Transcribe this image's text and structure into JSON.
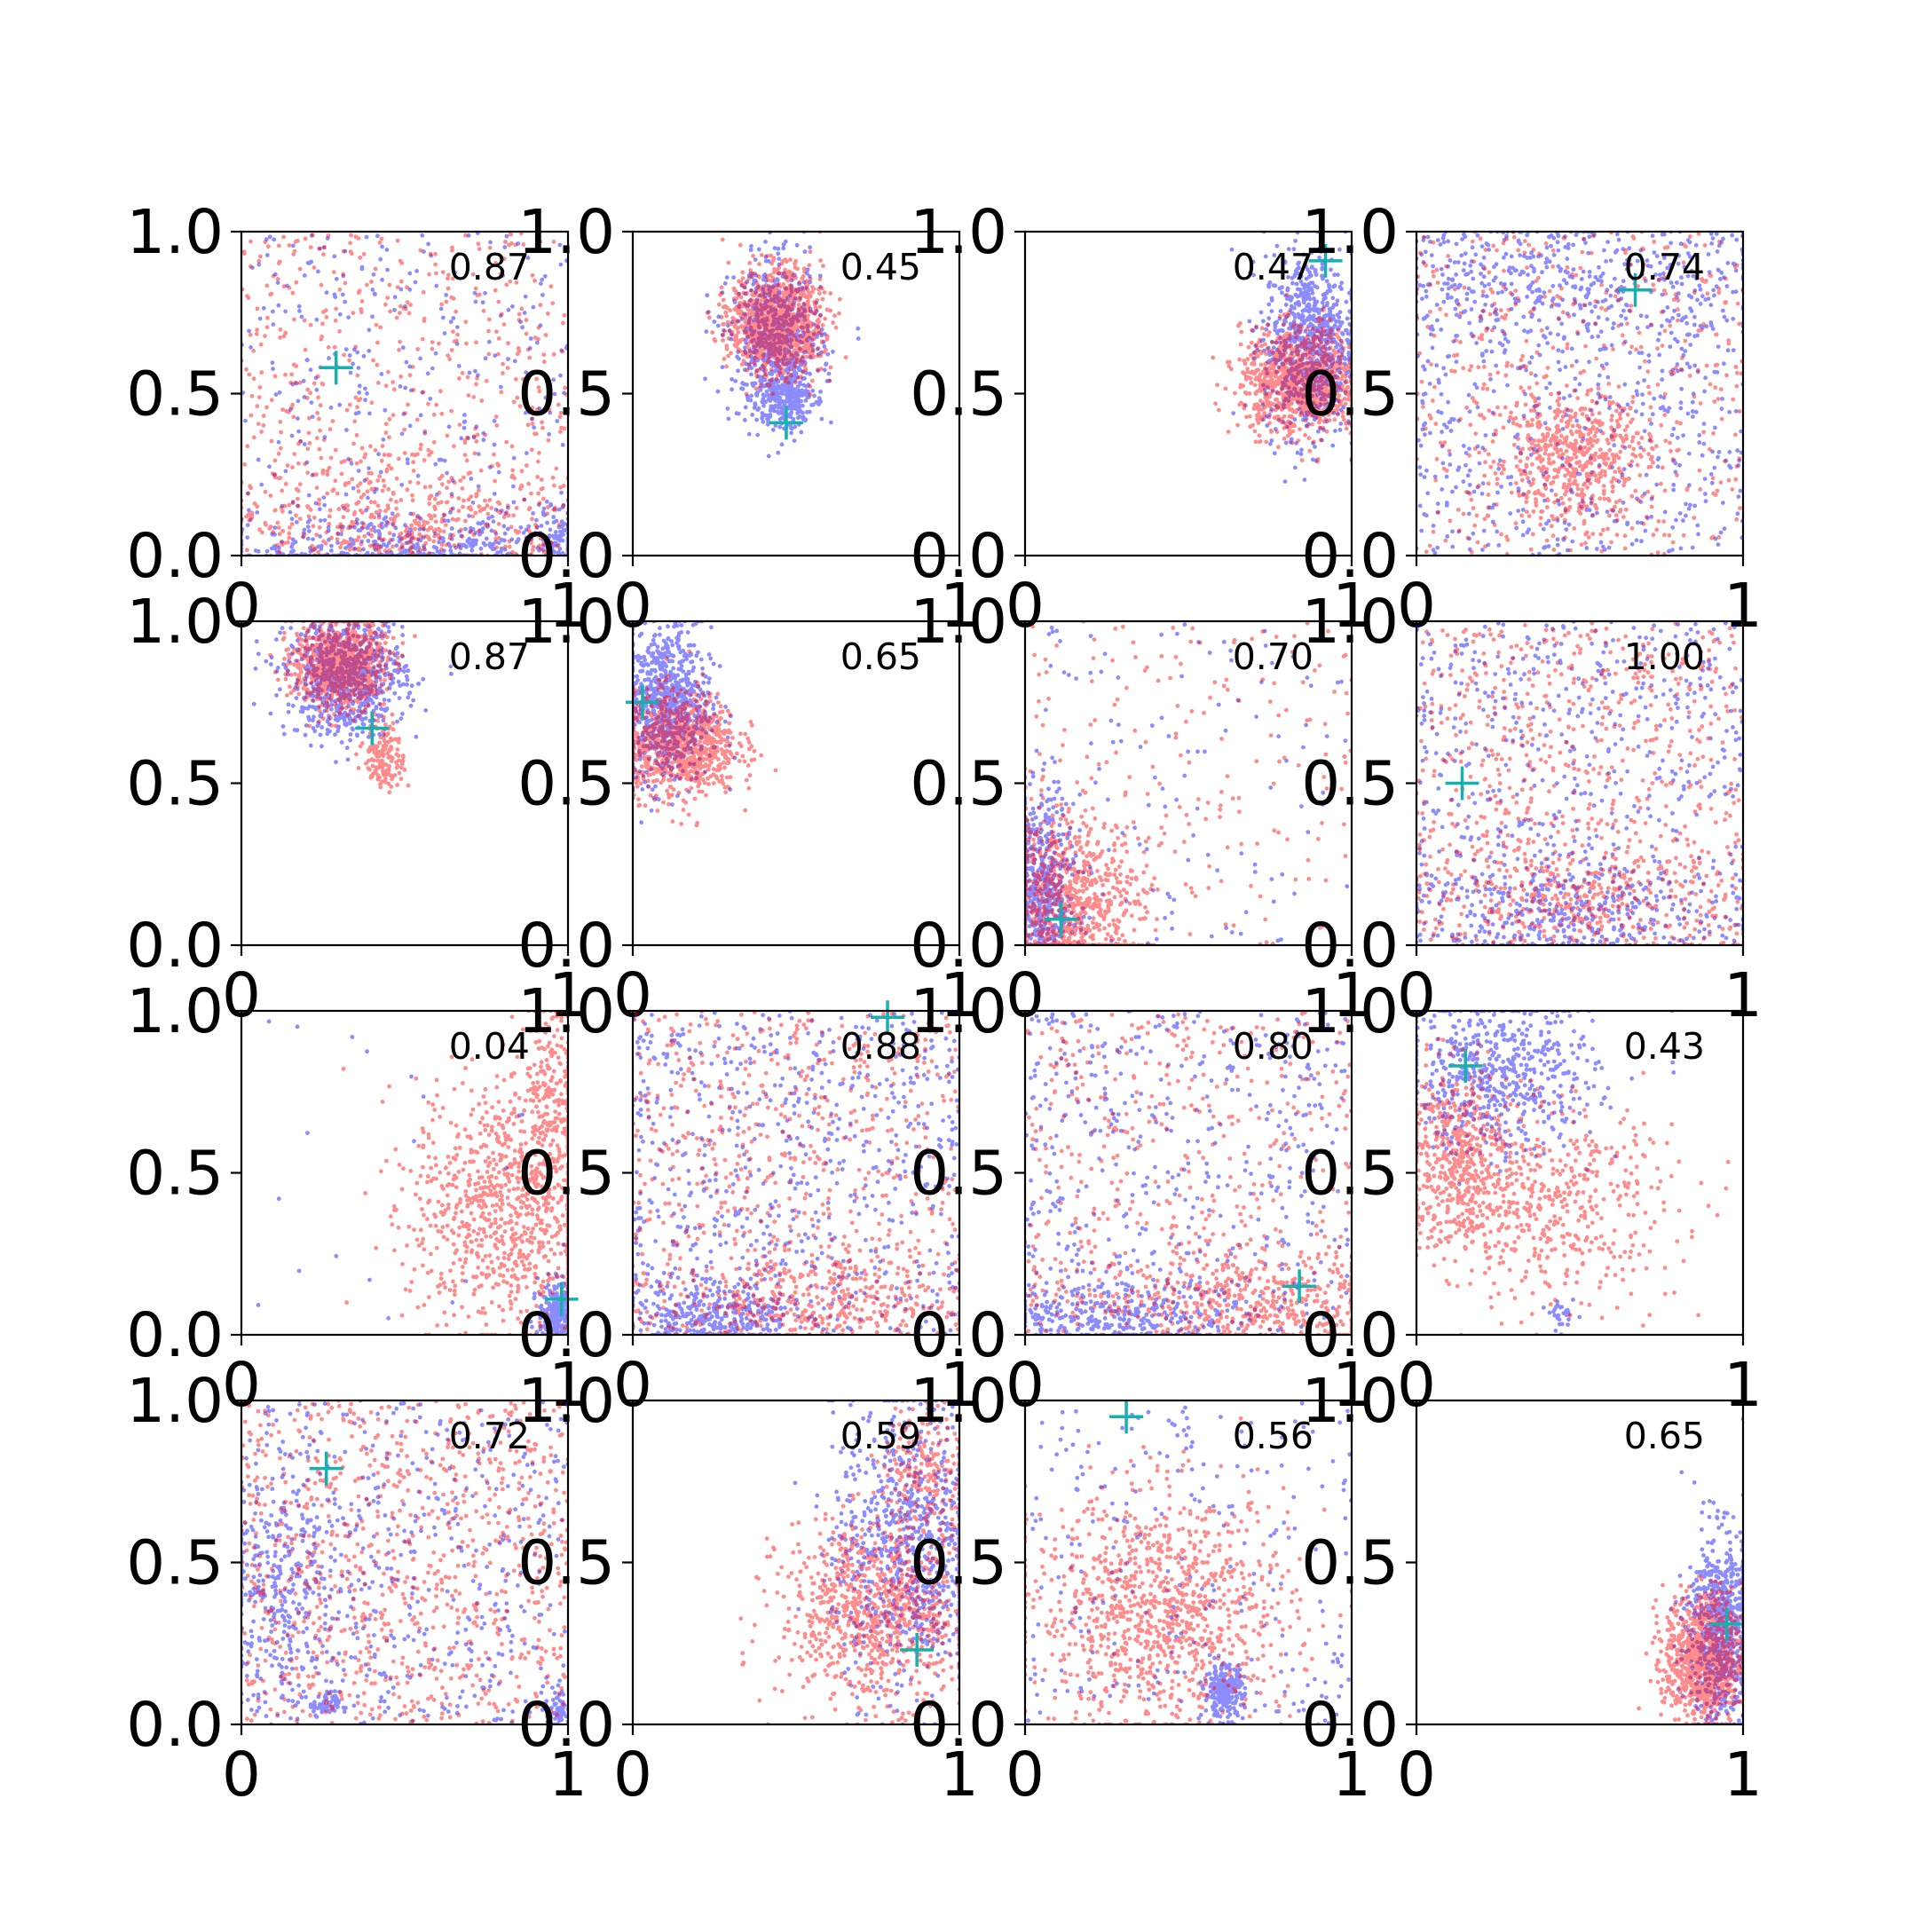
{
  "chart_data": {
    "type": "scatter",
    "rows": 4,
    "cols": 4,
    "xlim": [
      0,
      1
    ],
    "ylim": [
      0,
      1
    ],
    "x_ticks": [
      0,
      1
    ],
    "x_tick_labels": [
      "0",
      "1"
    ],
    "y_ticks": [
      0,
      0.5,
      1
    ],
    "y_tick_labels": [
      "0.0",
      "0.5",
      "1.0"
    ],
    "grid": false,
    "legend": "none",
    "colors": {
      "series_a": "#0000ff",
      "series_b": "#ff0000",
      "marker": "#17b0b0",
      "axes": "#000000"
    },
    "panels": [
      {
        "score": "0.87",
        "marker": [
          0.29,
          0.58
        ],
        "blue": [
          {
            "c": [
              0.5,
              0.5
            ],
            "s": [
              0.3,
              0.3
            ],
            "n": 320,
            "u": true
          },
          {
            "c": [
              0.5,
              0.03
            ],
            "s": [
              0.28,
              0.05
            ],
            "n": 380
          },
          {
            "c": [
              0.97,
              0.05
            ],
            "s": [
              0.03,
              0.05
            ],
            "n": 80
          }
        ],
        "red": [
          {
            "c": [
              0.5,
              0.5
            ],
            "s": [
              0.3,
              0.3
            ],
            "n": 600,
            "u": true
          },
          {
            "c": [
              0.5,
              0.1
            ],
            "s": [
              0.25,
              0.08
            ],
            "n": 300
          }
        ]
      },
      {
        "score": "0.45",
        "marker": [
          0.47,
          0.41
        ],
        "blue": [
          {
            "c": [
              0.44,
              0.66
            ],
            "s": [
              0.07,
              0.12
            ],
            "n": 700
          },
          {
            "c": [
              0.47,
              0.48
            ],
            "s": [
              0.04,
              0.05
            ],
            "n": 200
          }
        ],
        "red": [
          {
            "c": [
              0.44,
              0.72
            ],
            "s": [
              0.07,
              0.08
            ],
            "n": 1100
          }
        ]
      },
      {
        "score": "0.47",
        "marker": [
          0.92,
          0.91
        ],
        "blue": [
          {
            "c": [
              0.87,
              0.65
            ],
            "s": [
              0.07,
              0.14
            ],
            "n": 800
          }
        ],
        "red": [
          {
            "c": [
              0.84,
              0.54
            ],
            "s": [
              0.09,
              0.08
            ],
            "n": 1000
          }
        ]
      },
      {
        "score": "0.74",
        "marker": [
          0.67,
          0.82
        ],
        "blue": [
          {
            "c": [
              0.5,
              0.5
            ],
            "s": [
              0.3,
              0.3
            ],
            "n": 650,
            "u": true
          },
          {
            "c": [
              0.5,
              0.85
            ],
            "s": [
              0.3,
              0.1
            ],
            "n": 300
          }
        ],
        "red": [
          {
            "c": [
              0.47,
              0.3
            ],
            "s": [
              0.12,
              0.1
            ],
            "n": 500
          },
          {
            "c": [
              0.5,
              0.3
            ],
            "s": [
              0.3,
              0.2
            ],
            "n": 500,
            "u": true
          }
        ]
      },
      {
        "score": "0.87",
        "marker": [
          0.4,
          0.67
        ],
        "blue": [
          {
            "c": [
              0.32,
              0.83
            ],
            "s": [
              0.09,
              0.09
            ],
            "n": 800
          }
        ],
        "red": [
          {
            "c": [
              0.3,
              0.87
            ],
            "s": [
              0.07,
              0.07
            ],
            "n": 900
          },
          {
            "c": [
              0.44,
              0.58
            ],
            "s": [
              0.03,
              0.05
            ],
            "n": 150
          }
        ]
      },
      {
        "score": "0.65",
        "marker": [
          0.03,
          0.75
        ],
        "blue": [
          {
            "c": [
              0.1,
              0.74
            ],
            "s": [
              0.07,
              0.12
            ],
            "n": 800
          }
        ],
        "red": [
          {
            "c": [
              0.14,
              0.62
            ],
            "s": [
              0.09,
              0.08
            ],
            "n": 900
          }
        ]
      },
      {
        "score": "0.70",
        "marker": [
          0.11,
          0.08
        ],
        "blue": [
          {
            "c": [
              0.05,
              0.15
            ],
            "s": [
              0.05,
              0.15
            ],
            "n": 600
          },
          {
            "c": [
              0.5,
              0.5
            ],
            "s": [
              0.3,
              0.3
            ],
            "n": 120,
            "u": true
          }
        ],
        "red": [
          {
            "c": [
              0.12,
              0.12
            ],
            "s": [
              0.12,
              0.14
            ],
            "n": 900
          },
          {
            "c": [
              0.5,
              0.4
            ],
            "s": [
              0.3,
              0.3
            ],
            "n": 200,
            "u": true
          }
        ]
      },
      {
        "score": "1.00",
        "marker": [
          0.14,
          0.5
        ],
        "blue": [
          {
            "c": [
              0.5,
              0.5
            ],
            "s": [
              0.3,
              0.3
            ],
            "n": 600,
            "u": true
          },
          {
            "c": [
              0.5,
              0.1
            ],
            "s": [
              0.25,
              0.07
            ],
            "n": 300
          }
        ],
        "red": [
          {
            "c": [
              0.5,
              0.5
            ],
            "s": [
              0.3,
              0.3
            ],
            "n": 700,
            "u": true
          },
          {
            "c": [
              0.5,
              0.15
            ],
            "s": [
              0.25,
              0.1
            ],
            "n": 300
          }
        ]
      },
      {
        "score": "0.04",
        "marker": [
          0.98,
          0.11
        ],
        "blue": [
          {
            "c": [
              0.97,
              0.06
            ],
            "s": [
              0.03,
              0.05
            ],
            "n": 300
          },
          {
            "c": [
              0.5,
              0.5
            ],
            "s": [
              0.3,
              0.3
            ],
            "n": 20,
            "u": true
          }
        ],
        "red": [
          {
            "c": [
              0.82,
              0.4
            ],
            "s": [
              0.15,
              0.2
            ],
            "n": 900
          },
          {
            "c": [
              0.95,
              0.75
            ],
            "s": [
              0.05,
              0.15
            ],
            "n": 200
          }
        ]
      },
      {
        "score": "0.88",
        "marker": [
          0.78,
          0.98
        ],
        "blue": [
          {
            "c": [
              0.5,
              0.5
            ],
            "s": [
              0.3,
              0.3
            ],
            "n": 700,
            "u": true
          },
          {
            "c": [
              0.25,
              0.06
            ],
            "s": [
              0.12,
              0.05
            ],
            "n": 300
          }
        ],
        "red": [
          {
            "c": [
              0.5,
              0.5
            ],
            "s": [
              0.3,
              0.3
            ],
            "n": 700,
            "u": true
          },
          {
            "c": [
              0.55,
              0.1
            ],
            "s": [
              0.25,
              0.07
            ],
            "n": 300
          }
        ]
      },
      {
        "score": "0.80",
        "marker": [
          0.84,
          0.15
        ],
        "blue": [
          {
            "c": [
              0.5,
              0.5
            ],
            "s": [
              0.3,
              0.3
            ],
            "n": 500,
            "u": true
          },
          {
            "c": [
              0.3,
              0.06
            ],
            "s": [
              0.2,
              0.05
            ],
            "n": 300
          }
        ],
        "red": [
          {
            "c": [
              0.5,
              0.5
            ],
            "s": [
              0.3,
              0.3
            ],
            "n": 500,
            "u": true
          },
          {
            "c": [
              0.7,
              0.1
            ],
            "s": [
              0.25,
              0.08
            ],
            "n": 400
          }
        ]
      },
      {
        "score": "0.43",
        "marker": [
          0.15,
          0.83
        ],
        "blue": [
          {
            "c": [
              0.25,
              0.8
            ],
            "s": [
              0.15,
              0.12
            ],
            "n": 600
          },
          {
            "c": [
              0.45,
              0.06
            ],
            "s": [
              0.02,
              0.02
            ],
            "n": 30
          }
        ],
        "red": [
          {
            "c": [
              0.12,
              0.55
            ],
            "s": [
              0.08,
              0.14
            ],
            "n": 500
          },
          {
            "c": [
              0.4,
              0.4
            ],
            "s": [
              0.2,
              0.15
            ],
            "n": 500
          }
        ]
      },
      {
        "score": "0.72",
        "marker": [
          0.26,
          0.79
        ],
        "blue": [
          {
            "c": [
              0.5,
              0.5
            ],
            "s": [
              0.3,
              0.3
            ],
            "n": 500,
            "u": true
          },
          {
            "c": [
              0.12,
              0.4
            ],
            "s": [
              0.1,
              0.18
            ],
            "n": 300
          },
          {
            "c": [
              0.26,
              0.06
            ],
            "s": [
              0.02,
              0.02
            ],
            "n": 60
          },
          {
            "c": [
              0.97,
              0.05
            ],
            "s": [
              0.02,
              0.03
            ],
            "n": 50
          }
        ],
        "red": [
          {
            "c": [
              0.5,
              0.5
            ],
            "s": [
              0.3,
              0.3
            ],
            "n": 900,
            "u": true
          }
        ]
      },
      {
        "score": "0.59",
        "marker": [
          0.87,
          0.23
        ],
        "blue": [
          {
            "c": [
              0.85,
              0.55
            ],
            "s": [
              0.12,
              0.22
            ],
            "n": 800
          }
        ],
        "red": [
          {
            "c": [
              0.75,
              0.35
            ],
            "s": [
              0.15,
              0.14
            ],
            "n": 900
          },
          {
            "c": [
              0.9,
              0.8
            ],
            "s": [
              0.07,
              0.1
            ],
            "n": 200
          }
        ]
      },
      {
        "score": "0.56",
        "marker": [
          0.31,
          0.95
        ],
        "blue": [
          {
            "c": [
              0.5,
              0.5
            ],
            "s": [
              0.3,
              0.3
            ],
            "n": 250,
            "u": true
          },
          {
            "c": [
              0.61,
              0.1
            ],
            "s": [
              0.03,
              0.04
            ],
            "n": 250
          }
        ],
        "red": [
          {
            "c": [
              0.42,
              0.35
            ],
            "s": [
              0.2,
              0.18
            ],
            "n": 1000
          }
        ]
      },
      {
        "score": "0.65",
        "marker": [
          0.95,
          0.31
        ],
        "blue": [
          {
            "c": [
              0.93,
              0.3
            ],
            "s": [
              0.05,
              0.15
            ],
            "n": 700
          }
        ],
        "red": [
          {
            "c": [
              0.88,
              0.2
            ],
            "s": [
              0.06,
              0.1
            ],
            "n": 900
          }
        ]
      }
    ]
  }
}
